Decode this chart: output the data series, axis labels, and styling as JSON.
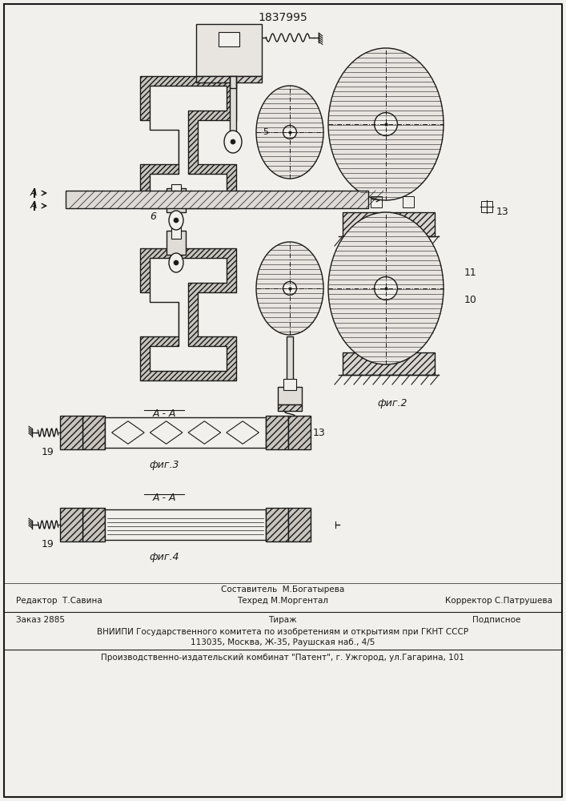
{
  "title": "1837995",
  "bg_color": "#f2f0ec",
  "line_color": "#1a1a1a",
  "hatch_color": "#1a1a1a",
  "wall_fill": "#c8c4be",
  "footer_sestavitel": "Составитель  М.Богатырева",
  "footer_redaktor": "Редактор  Т.Савина",
  "footer_tehred": "Техред М.Моргентал",
  "footer_korrektor": "Корректор С.Патрушева",
  "footer_zakaz": "Заказ 2885",
  "footer_tirazh": "Тираж",
  "footer_podpisnoe": "Подписное",
  "footer_vniip": "ВНИИПИ Государственного комитета по изобретениям и открытиям при ГКНТ СССР",
  "footer_addr": "113035, Москва, Ж-35, Раушская наб., 4/5",
  "footer_pub": "Производственно-издательский комбинат \"Патент\", г. Ужгород, ул.Гагарина, 101",
  "label_6": "6",
  "label_5": "5",
  "label_10": "10",
  "label_11": "11",
  "label_13": "13",
  "label_19a": "19",
  "label_19b": "19",
  "fig2": "фиг.2",
  "fig3": "фиг.3",
  "fig4": "фиг.4",
  "aa1": "А - А",
  "aa2": "А - А",
  "aa3": "А - А"
}
